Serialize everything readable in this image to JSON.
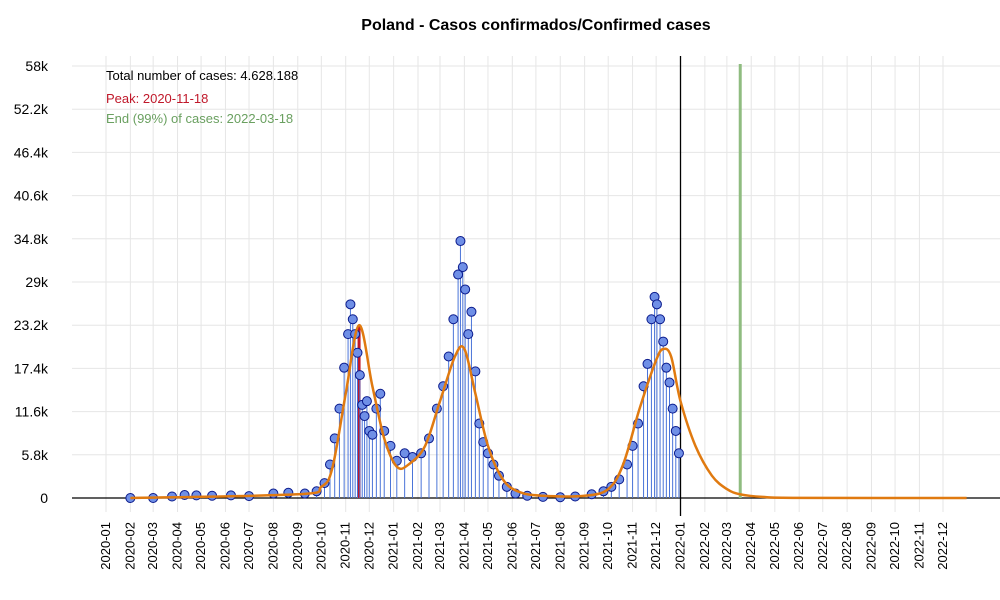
{
  "chart_data": {
    "type": "line",
    "title": "Poland - Casos confirmados/Confirmed cases",
    "xlabel": "",
    "ylabel": "",
    "y_ticks": [
      "0",
      "5.8k",
      "11.6k",
      "17.4k",
      "23.2k",
      "29k",
      "34.8k",
      "40.6k",
      "46.4k",
      "52.2k",
      "58k"
    ],
    "y_tick_values": [
      0,
      5800,
      11600,
      17400,
      23200,
      29000,
      34800,
      40600,
      46400,
      52200,
      58000
    ],
    "ylim": [
      0,
      58000
    ],
    "x_ticks": [
      "2020-01",
      "2020-02",
      "2020-03",
      "2020-04",
      "2020-05",
      "2020-06",
      "2020-07",
      "2020-08",
      "2020-09",
      "2020-10",
      "2020-11",
      "2020-12",
      "2021-01",
      "2021-02",
      "2021-03",
      "2021-04",
      "2021-05",
      "2021-06",
      "2021-07",
      "2021-08",
      "2021-09",
      "2021-10",
      "2021-11",
      "2021-12",
      "2022-01",
      "2022-02",
      "2022-03",
      "2022-04",
      "2022-05",
      "2022-06",
      "2022-07",
      "2022-08",
      "2022-09",
      "2022-10",
      "2022-11",
      "2022-12"
    ],
    "annotations": {
      "total": "Total number of cases: 4.628.188",
      "peak": "Peak: 2020-11-18",
      "end": "End (99%) of cases: 2022-03-18"
    },
    "markers": {
      "peak_date": "2020-11-18",
      "peak_value": 23200,
      "end_date": "2022-03-18",
      "today_date": "2022-01-01"
    },
    "colors": {
      "points_fill": "#6f8fe6",
      "points_stroke": "#0a1a8c",
      "stems": "#4a74d8",
      "fit": "#e07a10",
      "peak": "#c0182a",
      "end": "#8fbc80",
      "vline": "#000000",
      "grid": "#e6e6e6",
      "peak_text": "#c0182a",
      "end_text": "#6aa060"
    },
    "series": [
      {
        "kind": "daily_points",
        "x": [
          "2020-02-01",
          "2020-03-01",
          "2020-03-25",
          "2020-04-10",
          "2020-04-25",
          "2020-05-15",
          "2020-06-08",
          "2020-07-01",
          "2020-08-01",
          "2020-08-20",
          "2020-09-10",
          "2020-09-25",
          "2020-10-05",
          "2020-10-12",
          "2020-10-18",
          "2020-10-24",
          "2020-10-30",
          "2020-11-04",
          "2020-11-07",
          "2020-11-10",
          "2020-11-13",
          "2020-11-16",
          "2020-11-19",
          "2020-11-22",
          "2020-11-25",
          "2020-11-28",
          "2020-12-01",
          "2020-12-05",
          "2020-12-10",
          "2020-12-15",
          "2020-12-20",
          "2020-12-28",
          "2021-01-05",
          "2021-01-15",
          "2021-01-25",
          "2021-02-05",
          "2021-02-15",
          "2021-02-25",
          "2021-03-05",
          "2021-03-12",
          "2021-03-18",
          "2021-03-24",
          "2021-03-27",
          "2021-03-30",
          "2021-04-02",
          "2021-04-06",
          "2021-04-10",
          "2021-04-15",
          "2021-04-20",
          "2021-04-25",
          "2021-05-01",
          "2021-05-08",
          "2021-05-15",
          "2021-05-25",
          "2021-06-05",
          "2021-06-20",
          "2021-07-10",
          "2021-08-01",
          "2021-08-20",
          "2021-09-10",
          "2021-09-25",
          "2021-10-05",
          "2021-10-15",
          "2021-10-25",
          "2021-11-01",
          "2021-11-08",
          "2021-11-15",
          "2021-11-20",
          "2021-11-25",
          "2021-11-29",
          "2021-12-02",
          "2021-12-06",
          "2021-12-10",
          "2021-12-14",
          "2021-12-18",
          "2021-12-22",
          "2021-12-26",
          "2021-12-30"
        ],
        "values": [
          0,
          0,
          200,
          400,
          350,
          300,
          350,
          250,
          600,
          700,
          600,
          900,
          2000,
          4500,
          8000,
          12000,
          17500,
          22000,
          26000,
          24000,
          22000,
          19500,
          16500,
          12500,
          11000,
          13000,
          9000,
          8500,
          12000,
          14000,
          9000,
          7000,
          5000,
          6000,
          5500,
          6000,
          8000,
          12000,
          15000,
          19000,
          24000,
          30000,
          34500,
          31000,
          28000,
          22000,
          25000,
          17000,
          10000,
          7500,
          6000,
          4500,
          3000,
          1500,
          600,
          300,
          150,
          100,
          200,
          500,
          900,
          1500,
          2500,
          4500,
          7000,
          10000,
          15000,
          18000,
          24000,
          27000,
          26000,
          24000,
          21000,
          17500,
          15500,
          12000,
          9000,
          6000
        ]
      },
      {
        "kind": "fitted_curve",
        "x": [
          "2020-02-01",
          "2020-09-01",
          "2020-10-01",
          "2020-10-15",
          "2020-11-01",
          "2020-11-18",
          "2020-12-05",
          "2020-12-20",
          "2021-01-05",
          "2021-01-20",
          "2021-02-10",
          "2021-03-01",
          "2021-03-20",
          "2021-04-01",
          "2021-04-15",
          "2021-05-01",
          "2021-05-20",
          "2021-06-10",
          "2021-07-10",
          "2021-09-01",
          "2021-10-01",
          "2021-10-20",
          "2021-11-10",
          "2021-12-01",
          "2021-12-10",
          "2021-12-20",
          "2022-01-01",
          "2022-01-20",
          "2022-02-10",
          "2022-03-01",
          "2022-03-18",
          "2022-04-15",
          "2022-06-01",
          "2022-12-31"
        ],
        "values": [
          0,
          500,
          1500,
          4000,
          14000,
          23200,
          15000,
          8000,
          4200,
          4500,
          7000,
          13000,
          19000,
          20000,
          14000,
          7000,
          2500,
          800,
          300,
          300,
          1200,
          4500,
          12000,
          18500,
          20000,
          19000,
          13000,
          7000,
          3000,
          1200,
          500,
          150,
          20,
          0
        ]
      }
    ]
  }
}
